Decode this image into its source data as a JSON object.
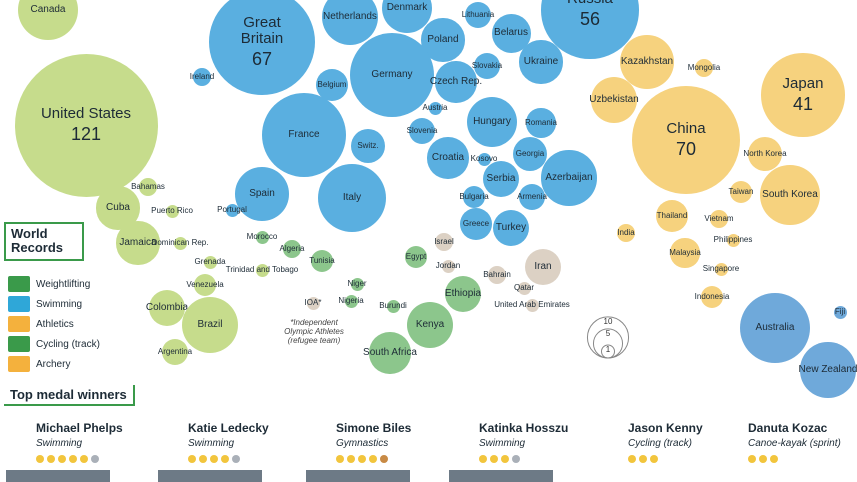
{
  "chart_data": {
    "type": "bubble",
    "groups": [
      {
        "color": "#c6dc8c",
        "bubbles": [
          {
            "label": "Canada",
            "medals": 22
          },
          {
            "label": "United States",
            "medals": 121,
            "value_label": "121"
          },
          {
            "label": "Bahamas",
            "medals": 2
          },
          {
            "label": "Cuba",
            "medals": 11
          },
          {
            "label": "Jamaica",
            "medals": 11
          },
          {
            "label": "Puerto Rico",
            "medals": 1
          },
          {
            "label": "Dominican Rep.",
            "medals": 1
          },
          {
            "label": "Grenada",
            "medals": 1
          },
          {
            "label": "Venezuela",
            "medals": 3
          },
          {
            "label": "Trinidad and Tobago",
            "medals": 1
          },
          {
            "label": "Colombia",
            "medals": 8
          },
          {
            "label": "Brazil",
            "medals": 19
          },
          {
            "label": "Argentina",
            "medals": 4
          }
        ]
      },
      {
        "color": "#5aafe0",
        "bubbles": [
          {
            "label": "Great Britain",
            "medals": 67,
            "value_label": "67"
          },
          {
            "label": "Netherlands",
            "medals": 19
          },
          {
            "label": "Denmark",
            "medals": 15
          },
          {
            "label": "Lithuania",
            "medals": 4
          },
          {
            "label": "Belarus",
            "medals": 9
          },
          {
            "label": "Poland",
            "medals": 11
          },
          {
            "label": "Germany",
            "medals": 42
          },
          {
            "label": "Slovakia",
            "medals": 4
          },
          {
            "label": "Ukraine",
            "medals": 11
          },
          {
            "label": "Ireland",
            "medals": 2
          },
          {
            "label": "Belgium",
            "medals": 6
          },
          {
            "label": "Czech Rep.",
            "medals": 10
          },
          {
            "label": "Russia",
            "medals": 56,
            "value_label": "56"
          },
          {
            "label": "Austria",
            "medals": 1
          },
          {
            "label": "France",
            "medals": 42
          },
          {
            "label": "Switz.",
            "medals": 7
          },
          {
            "label": "Slovenia",
            "medals": 4
          },
          {
            "label": "Hungary",
            "medals": 15
          },
          {
            "label": "Romania",
            "medals": 5
          },
          {
            "label": "Croatia",
            "medals": 10
          },
          {
            "label": "Kosovo",
            "medals": 1
          },
          {
            "label": "Georgia",
            "medals": 7
          },
          {
            "label": "Serbia",
            "medals": 8
          },
          {
            "label": "Azerbaijan",
            "medals": 18
          },
          {
            "label": "Bulgaria",
            "medals": 3
          },
          {
            "label": "Armenia",
            "medals": 4
          },
          {
            "label": "Spain",
            "medals": 17
          },
          {
            "label": "Italy",
            "medals": 28
          },
          {
            "label": "Portugal",
            "medals": 1
          },
          {
            "label": "Greece",
            "medals": 6
          },
          {
            "label": "Turkey",
            "medals": 8
          }
        ]
      },
      {
        "color": "#dcd1c4",
        "bubbles": [
          {
            "label": "Israel",
            "medals": 2
          },
          {
            "label": "Iran",
            "medals": 8
          },
          {
            "label": "Jordan",
            "medals": 1
          },
          {
            "label": "Bahrain",
            "medals": 2
          },
          {
            "label": "Qatar",
            "medals": 1
          },
          {
            "label": "United Arab Emirates",
            "medals": 1
          },
          {
            "label": "IOA*",
            "medals": 1
          }
        ]
      },
      {
        "color": "#8cc68c",
        "bubbles": [
          {
            "label": "Morocco",
            "medals": 1
          },
          {
            "label": "Algeria",
            "medals": 2
          },
          {
            "label": "Tunisia",
            "medals": 3
          },
          {
            "label": "Egypt",
            "medals": 3
          },
          {
            "label": "Niger",
            "medals": 1
          },
          {
            "label": "Nigeria",
            "medals": 1
          },
          {
            "label": "Ethiopia",
            "medals": 8
          },
          {
            "label": "Burundi",
            "medals": 1
          },
          {
            "label": "Kenya",
            "medals": 13
          },
          {
            "label": "South Africa",
            "medals": 10
          }
        ]
      },
      {
        "color": "#f6d27e",
        "bubbles": [
          {
            "label": "Kazakhstan",
            "medals": 17
          },
          {
            "label": "Mongolia",
            "medals": 2
          },
          {
            "label": "Uzbekistan",
            "medals": 13
          },
          {
            "label": "Japan",
            "medals": 41,
            "value_label": "41"
          },
          {
            "label": "China",
            "medals": 70,
            "value_label": "70"
          },
          {
            "label": "North Korea",
            "medals": 7
          },
          {
            "label": "Taiwan",
            "medals": 3
          },
          {
            "label": "South Korea",
            "medals": 21
          },
          {
            "label": "Thailand",
            "medals": 6
          },
          {
            "label": "Vietnam",
            "medals": 2
          },
          {
            "label": "India",
            "medals": 2
          },
          {
            "label": "Philippines",
            "medals": 1
          },
          {
            "label": "Malaysia",
            "medals": 5
          },
          {
            "label": "Singapore",
            "medals": 1
          },
          {
            "label": "Indonesia",
            "medals": 3
          }
        ]
      },
      {
        "color": "#6fa9da",
        "bubbles": [
          {
            "label": "Australia",
            "medals": 29
          },
          {
            "label": "New Zealand",
            "medals": 18
          },
          {
            "label": "Fiji",
            "medals": 1
          }
        ]
      }
    ],
    "size_key": [
      10,
      5,
      1
    ],
    "note": "*Independent Olympic Athletes (refugee team)",
    "legend": {
      "title": "World Records",
      "items": [
        {
          "name": "Weightlifting",
          "color": "#3a9a4a"
        },
        {
          "name": "Swimming",
          "color": "#2fa7d8"
        },
        {
          "name": "Athletics",
          "color": "#f4b13d"
        },
        {
          "name": "Cycling (track)",
          "color": "#3a9a4a"
        },
        {
          "name": "Archery",
          "color": "#f4b13d"
        }
      ]
    }
  },
  "top_medal_winners": {
    "title": "Top medal winners",
    "athletes": [
      {
        "name": "Michael Phelps",
        "sport": "Swimming",
        "gold": 5,
        "silver": 1,
        "bronze": 0
      },
      {
        "name": "Katie Ledecky",
        "sport": "Swimming",
        "gold": 4,
        "silver": 1,
        "bronze": 0
      },
      {
        "name": "Simone Biles",
        "sport": "Gymnastics",
        "gold": 4,
        "silver": 0,
        "bronze": 1
      },
      {
        "name": "Katinka Hosszu",
        "sport": "Swimming",
        "gold": 3,
        "silver": 1,
        "bronze": 0
      },
      {
        "name": "Jason Kenny",
        "sport": "Cycling (track)",
        "gold": 3,
        "silver": 0,
        "bronze": 0
      },
      {
        "name": "Danuta Kozac",
        "sport": "Canoe-kayak (sprint)",
        "gold": 3,
        "silver": 0,
        "bronze": 0
      }
    ]
  }
}
